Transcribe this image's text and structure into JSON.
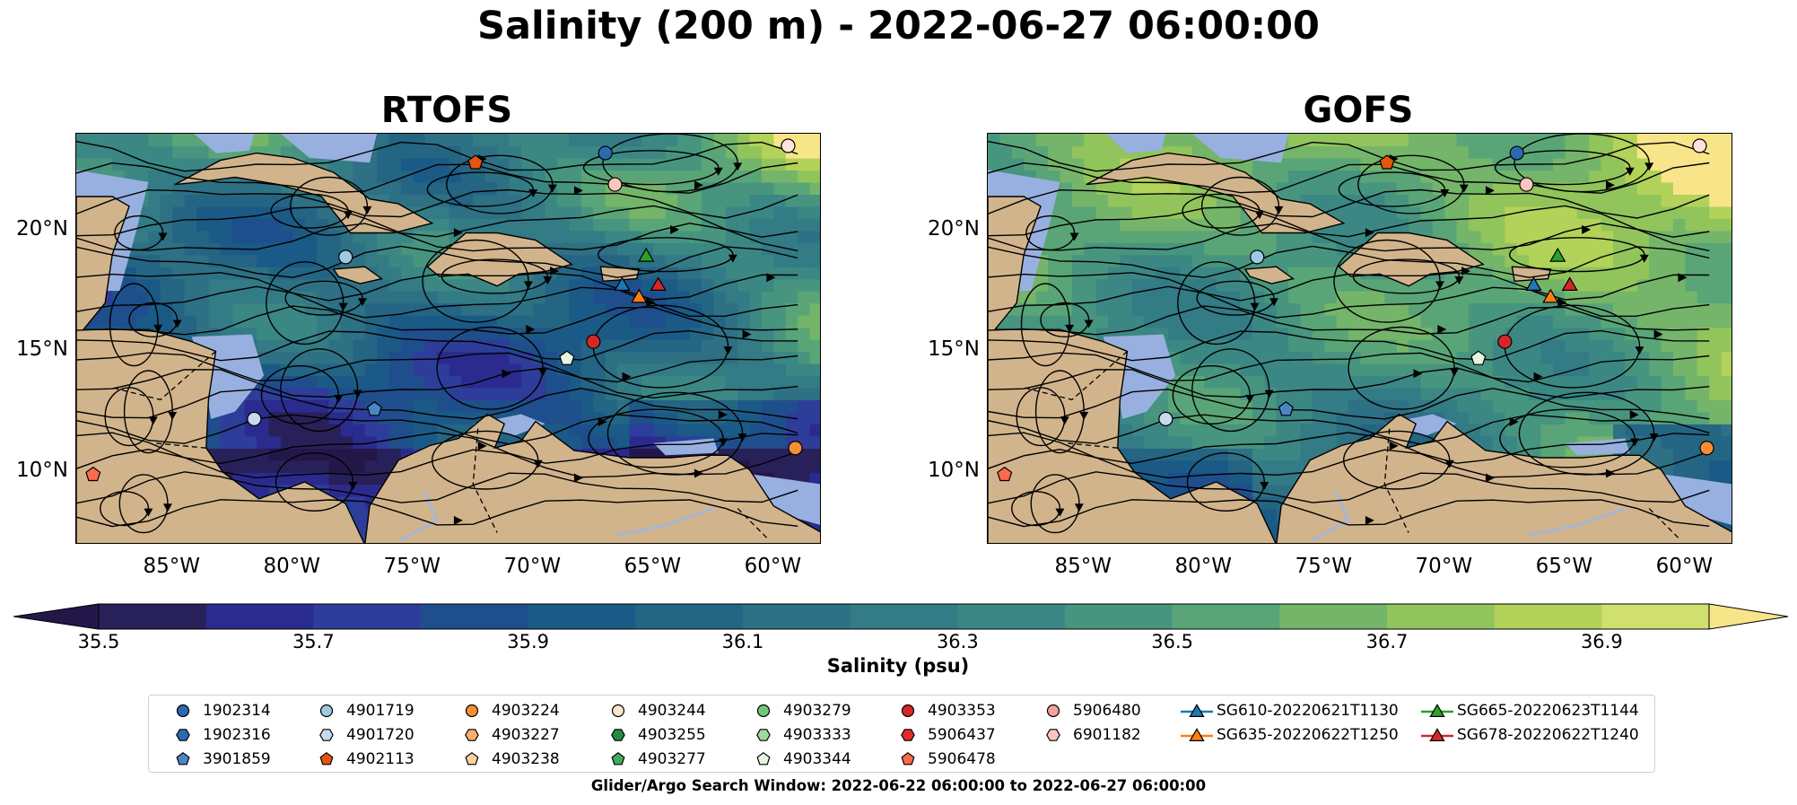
{
  "figure": {
    "title": "Salinity (200 m) - 2022-06-27 06:00:00",
    "footer": "Glider/Argo Search Window: 2022-06-22 06:00:00 to 2022-06-27 06:00:00"
  },
  "panels": [
    {
      "title": "RTOFS",
      "field": "rtofs"
    },
    {
      "title": "GOFS",
      "field": "gofs"
    }
  ],
  "map": {
    "lon_range": [
      -89,
      -58
    ],
    "lat_range": [
      7,
      24
    ],
    "lat_ticks": [
      "20°N",
      "15°N",
      "10°N"
    ],
    "lat_tick_values": [
      20,
      15,
      10
    ],
    "lon_ticks": [
      "85°W",
      "80°W",
      "75°W",
      "70°W",
      "65°W",
      "60°W"
    ],
    "lon_tick_values": [
      -85,
      -80,
      -75,
      -70,
      -65,
      -60
    ],
    "colors": {
      "land": "#d2b48c",
      "shallow_water": "#98b0df",
      "rivers": "#a6b6d8",
      "streamlines": "#000000"
    }
  },
  "colorbar": {
    "label": "Salinity (psu)",
    "ticks": [
      "35.5",
      "35.7",
      "35.9",
      "36.1",
      "36.3",
      "36.5",
      "36.7",
      "36.9"
    ],
    "levels": [
      35.5,
      35.6,
      35.7,
      35.8,
      35.9,
      36.0,
      36.1,
      36.2,
      36.3,
      36.4,
      36.5,
      36.6,
      36.7,
      36.8,
      36.9
    ],
    "colors": [
      "#282159",
      "#2b2b8f",
      "#2e3d9a",
      "#1e4f8c",
      "#1b5a86",
      "#246584",
      "#2e7084",
      "#337b85",
      "#3b8784",
      "#47957f",
      "#5aa577",
      "#74b56a",
      "#92c45c",
      "#b2d25a",
      "#cfdf70"
    ],
    "under_color": "#23174a",
    "over_color": "#f8e58a"
  },
  "legend": {
    "columns": [
      [
        {
          "label": "1902314",
          "marker": "circle",
          "color": "#2a6bb0"
        },
        {
          "label": "1902316",
          "marker": "hexagon",
          "color": "#2a6bb0"
        },
        {
          "label": "3901859",
          "marker": "pentagon",
          "color": "#4a86c6"
        }
      ],
      [
        {
          "label": "4901719",
          "marker": "circle",
          "color": "#9ecae1"
        },
        {
          "label": "4901720",
          "marker": "hexagon",
          "color": "#c6dbef"
        },
        {
          "label": "4902113",
          "marker": "pentagon",
          "color": "#e6550d"
        }
      ],
      [
        {
          "label": "4903224",
          "marker": "circle",
          "color": "#f88d34"
        },
        {
          "label": "4903227",
          "marker": "hexagon",
          "color": "#fdae6b"
        },
        {
          "label": "4903238",
          "marker": "pentagon",
          "color": "#fdd0a2"
        }
      ],
      [
        {
          "label": "4903244",
          "marker": "circle",
          "color": "#fee6ce"
        },
        {
          "label": "4903255",
          "marker": "hexagon",
          "color": "#238b45"
        },
        {
          "label": "4903277",
          "marker": "pentagon",
          "color": "#41ab5d"
        }
      ],
      [
        {
          "label": "4903279",
          "marker": "circle",
          "color": "#74c476"
        },
        {
          "label": "4903333",
          "marker": "hexagon",
          "color": "#a1d99b"
        },
        {
          "label": "4903344",
          "marker": "pentagon",
          "color": "#e5f5e0"
        }
      ],
      [
        {
          "label": "4903353",
          "marker": "circle",
          "color": "#d62728"
        },
        {
          "label": "5906437",
          "marker": "hexagon",
          "color": "#de2d26"
        },
        {
          "label": "5906478",
          "marker": "pentagon",
          "color": "#fb6a4a"
        }
      ],
      [
        {
          "label": "5906480",
          "marker": "circle",
          "color": "#f4a09c"
        },
        {
          "label": "6901182",
          "marker": "hexagon",
          "color": "#fcc5c0"
        }
      ],
      [
        {
          "label": "SG610-20220621T1130",
          "marker": "triangle-line",
          "color": "#1f77b4"
        },
        {
          "label": "SG635-20220622T1250",
          "marker": "triangle-line",
          "color": "#ff7f0e"
        }
      ],
      [
        {
          "label": "SG665-20220623T1144",
          "marker": "triangle-line",
          "color": "#2ca02c"
        },
        {
          "label": "SG678-20220622T1240",
          "marker": "triangle-line",
          "color": "#d62728"
        }
      ]
    ]
  },
  "points": [
    {
      "lon": -67.0,
      "lat": 23.2,
      "color": "#2a6bb0",
      "marker": "circle"
    },
    {
      "lon": -59.4,
      "lat": 23.5,
      "color": "#fde3dc",
      "marker": "circle"
    },
    {
      "lon": -72.4,
      "lat": 22.8,
      "color": "#e6550d",
      "marker": "pentagon"
    },
    {
      "lon": -66.6,
      "lat": 21.9,
      "color": "#fcc5c0",
      "marker": "circle"
    },
    {
      "lon": -77.8,
      "lat": 18.9,
      "color": "#9ecae1",
      "marker": "circle"
    },
    {
      "lon": -65.3,
      "lat": 18.9,
      "color": "#2ca02c",
      "marker": "triangle"
    },
    {
      "lon": -66.3,
      "lat": 17.7,
      "color": "#1f77b4",
      "marker": "triangle"
    },
    {
      "lon": -64.8,
      "lat": 17.7,
      "color": "#d62728",
      "marker": "triangle"
    },
    {
      "lon": -65.6,
      "lat": 17.2,
      "color": "#ff7f0e",
      "marker": "triangle"
    },
    {
      "lon": -67.5,
      "lat": 15.4,
      "color": "#d62728",
      "marker": "circle"
    },
    {
      "lon": -68.6,
      "lat": 14.7,
      "color": "#e5f5e0",
      "marker": "pentagon"
    },
    {
      "lon": -81.6,
      "lat": 12.2,
      "color": "#c6dbef",
      "marker": "circle"
    },
    {
      "lon": -76.6,
      "lat": 12.6,
      "color": "#4a86c6",
      "marker": "pentagon"
    },
    {
      "lon": -59.1,
      "lat": 11.0,
      "color": "#f88d34",
      "marker": "circle"
    },
    {
      "lon": -88.3,
      "lat": 9.9,
      "color": "#fb6a4a",
      "marker": "pentagon"
    }
  ]
}
